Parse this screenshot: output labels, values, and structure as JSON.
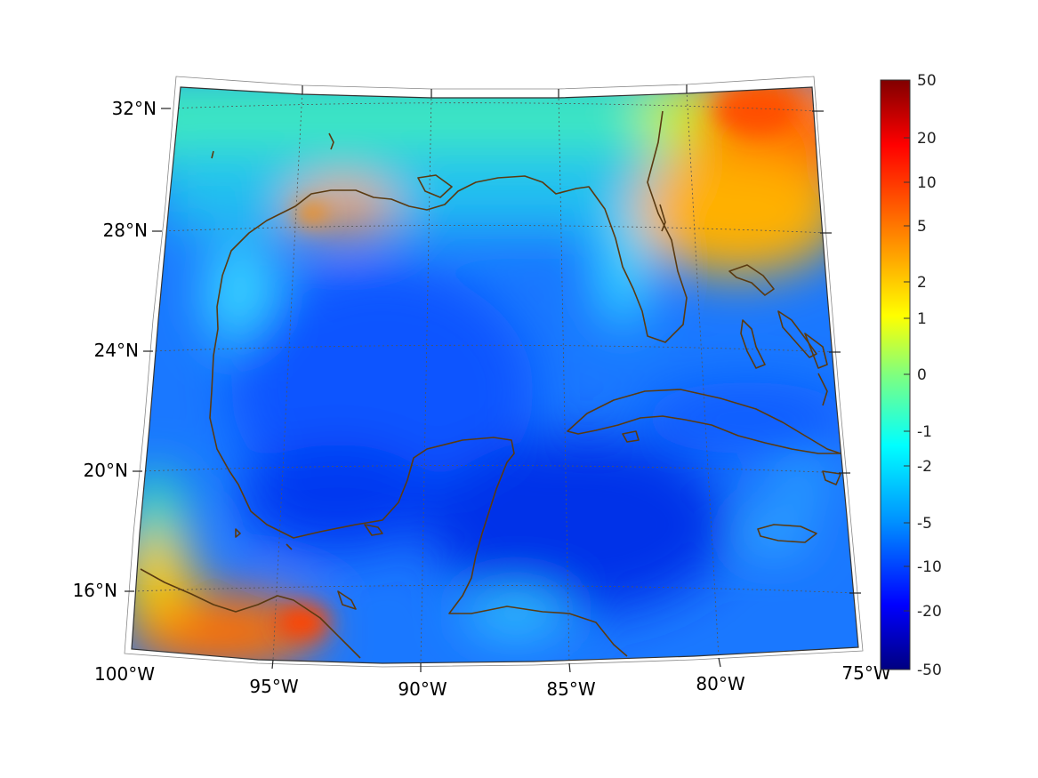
{
  "map": {
    "region": "Gulf of Mexico and Caribbean",
    "projection": "conic",
    "lon_range": [
      -100,
      -75
    ],
    "lat_range": [
      14,
      33
    ],
    "lon_labels": [
      "100°W",
      "95°W",
      "90°W",
      "85°W",
      "80°W",
      "75°W"
    ],
    "lat_labels": [
      "32°N",
      "28°N",
      "24°N",
      "20°N",
      "16°N"
    ],
    "graticule": "dotted",
    "coastline_color": "#5a3a10"
  },
  "colorbar": {
    "colormap": "jet",
    "tick_labels": [
      "50",
      "20",
      "10",
      "5",
      "2",
      "1",
      "0",
      "-1",
      "-2",
      "-5",
      "-10",
      "-20",
      "-50"
    ],
    "scale": "symmetric-log"
  },
  "colors": {
    "ocean_dominant": "#1060ff",
    "warm_extreme": "#ff4500",
    "coast": "#5a3a10"
  }
}
